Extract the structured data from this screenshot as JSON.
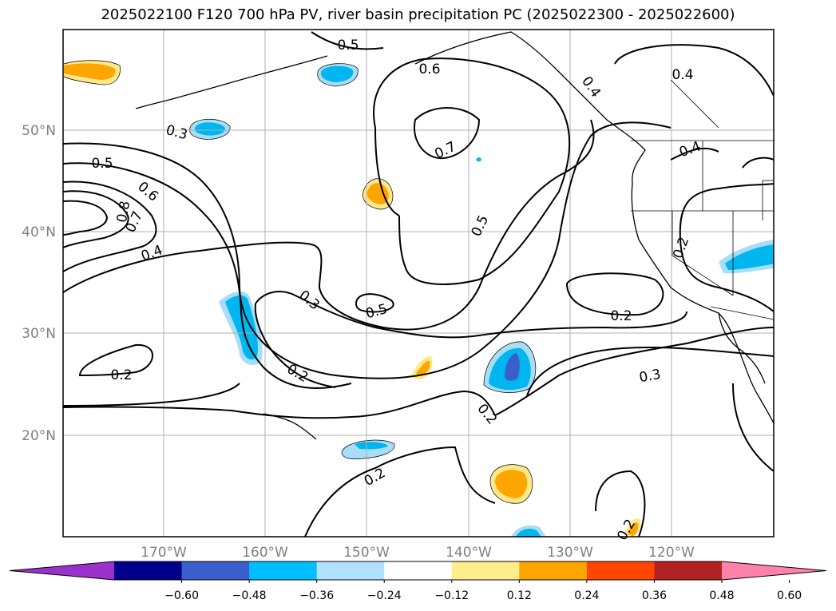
{
  "title": "2025022100 F120 700 hPa PV, river basin precipitation PC (2025022300 - 2025022600)",
  "map": {
    "lat_labels": [
      "50°N",
      "40°N",
      "30°N",
      "20°N"
    ],
    "lon_labels": [
      "170°W",
      "160°W",
      "150°W",
      "140°W",
      "130°W",
      "120°W"
    ],
    "contour_labels": [
      "0.5",
      "0.6",
      "0.4",
      "0.4",
      "0.3",
      "0.7",
      "0.4",
      "0.5",
      "0.6",
      "0.8",
      "0.7",
      "0.4",
      "0.5",
      "0.3",
      "0.5",
      "0.2",
      "0.2",
      "0.2",
      "0.2",
      "0.3",
      "0.2",
      "0.2",
      "0.2"
    ],
    "colors": {
      "positive_light": "#ffe88a",
      "positive": "#ffa500",
      "negative_light": "#a8ddf8",
      "negative": "#00b6ee",
      "negative_strong": "#3a5fcd"
    }
  },
  "colorbar": {
    "ticks": [
      "−0.60",
      "−0.48",
      "−0.36",
      "−0.24",
      "−0.12",
      "0.12",
      "0.24",
      "0.36",
      "0.48",
      "0.60"
    ],
    "colors": [
      "#9932cc",
      "#00008b",
      "#3a5fcd",
      "#00bfff",
      "#b0e2ff",
      "#ffffff",
      "#ffec8b",
      "#ffa500",
      "#ff4500",
      "#b22222",
      "#ff82ab"
    ]
  }
}
